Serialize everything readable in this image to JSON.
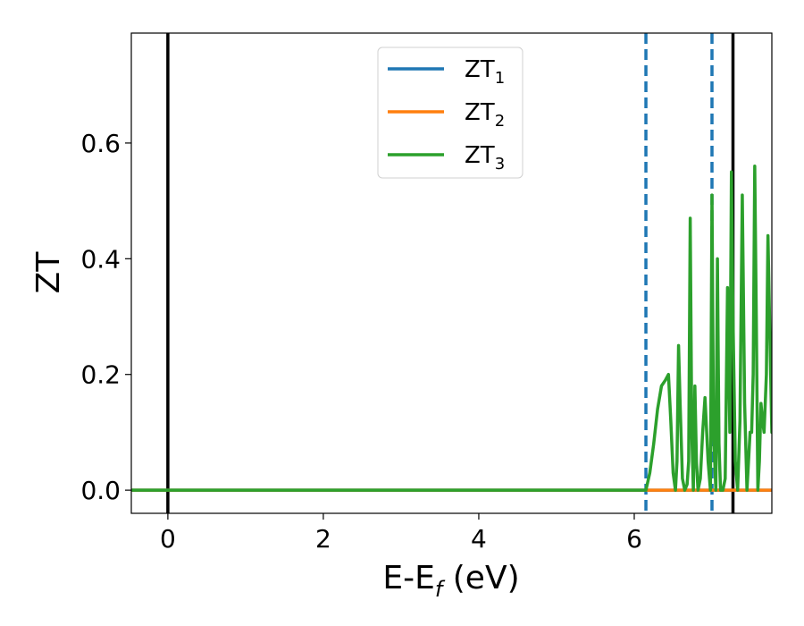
{
  "chart_data": {
    "type": "line",
    "xlabel": "E-E",
    "xlabel_sub": "f",
    "xlabel_unit": " (eV)",
    "ylabel": "ZT",
    "xlim": [
      -0.47,
      7.77
    ],
    "ylim": [
      -0.04,
      0.79
    ],
    "x_ticks": [
      0,
      2,
      4,
      6
    ],
    "x_tick_labels": [
      "0",
      "2",
      "4",
      "6"
    ],
    "y_ticks": [
      0.0,
      0.2,
      0.4,
      0.6
    ],
    "y_tick_labels": [
      "0.0",
      "0.2",
      "0.4",
      "0.6"
    ],
    "grid": false,
    "legend_position": "top-center",
    "vertical_lines": [
      {
        "x": 0.0,
        "color": "#000000",
        "style": "solid"
      },
      {
        "x": 6.15,
        "color": "#1f77b4",
        "style": "dashed"
      },
      {
        "x": 7.0,
        "color": "#1f77b4",
        "style": "dashed"
      },
      {
        "x": 7.27,
        "color": "#000000",
        "style": "solid"
      }
    ],
    "series": [
      {
        "name": "ZT",
        "sub": "1",
        "color": "#1f77b4",
        "x": [
          -0.47,
          7.77
        ],
        "y": [
          0.0,
          0.0
        ]
      },
      {
        "name": "ZT",
        "sub": "2",
        "color": "#ff7f0e",
        "x": [
          -0.47,
          7.77
        ],
        "y": [
          0.0,
          0.0
        ]
      },
      {
        "name": "ZT",
        "sub": "3",
        "color": "#2ca02c",
        "x": [
          -0.47,
          6.15,
          6.2,
          6.25,
          6.3,
          6.35,
          6.4,
          6.44,
          6.47,
          6.5,
          6.53,
          6.55,
          6.57,
          6.59,
          6.62,
          6.65,
          6.68,
          6.7,
          6.72,
          6.74,
          6.76,
          6.78,
          6.8,
          6.82,
          6.85,
          6.88,
          6.91,
          6.95,
          6.98,
          7.0,
          7.02,
          7.05,
          7.07,
          7.09,
          7.11,
          7.14,
          7.17,
          7.2,
          7.23,
          7.25,
          7.27,
          7.3,
          7.33,
          7.36,
          7.39,
          7.42,
          7.45,
          7.47,
          7.49,
          7.51,
          7.53,
          7.55,
          7.57,
          7.59,
          7.61,
          7.63,
          7.65,
          7.67,
          7.7,
          7.72,
          7.74,
          7.77
        ],
        "y": [
          0.0,
          0.0,
          0.03,
          0.08,
          0.14,
          0.18,
          0.19,
          0.2,
          0.12,
          0.03,
          0.0,
          0.05,
          0.25,
          0.15,
          0.02,
          0.0,
          0.01,
          0.05,
          0.47,
          0.1,
          0.0,
          0.18,
          0.05,
          0.0,
          0.02,
          0.1,
          0.16,
          0.05,
          0.0,
          0.51,
          0.1,
          0.0,
          0.4,
          0.08,
          0.0,
          0.0,
          0.02,
          0.35,
          0.1,
          0.55,
          0.3,
          0.05,
          0.0,
          0.12,
          0.51,
          0.15,
          0.0,
          0.05,
          0.1,
          0.1,
          0.2,
          0.56,
          0.3,
          0.0,
          0.05,
          0.15,
          0.12,
          0.1,
          0.2,
          0.44,
          0.3,
          0.1
        ]
      }
    ]
  }
}
